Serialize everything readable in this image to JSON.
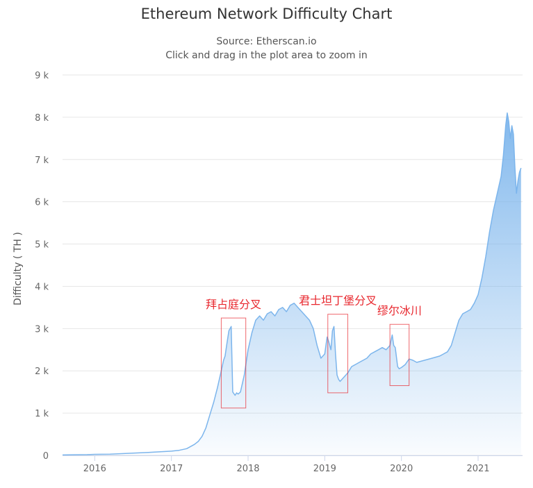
{
  "chart_data": {
    "type": "area",
    "title": "Ethereum Network Difficulty Chart",
    "subtitle": "Source: Etherscan.io",
    "subtitle2": "Click and drag in the plot area to zoom in",
    "xlabel": "",
    "ylabel": "Difficulty ( TH )",
    "x_ticks": [
      "2016",
      "2017",
      "2018",
      "2019",
      "2020",
      "2021"
    ],
    "y_ticks": [
      {
        "value": 0,
        "label": "0"
      },
      {
        "value": 1000,
        "label": "1 k"
      },
      {
        "value": 2000,
        "label": "2 k"
      },
      {
        "value": 3000,
        "label": "3 k"
      },
      {
        "value": 4000,
        "label": "4 k"
      },
      {
        "value": 5000,
        "label": "5 k"
      },
      {
        "value": 6000,
        "label": "6 k"
      },
      {
        "value": 7000,
        "label": "7 k"
      },
      {
        "value": 8000,
        "label": "8 k"
      },
      {
        "value": 9000,
        "label": "9 k"
      }
    ],
    "ylim": [
      0,
      9000
    ],
    "xlim": [
      2015.58,
      2021.58
    ],
    "grid": true,
    "colors": {
      "line": "#7cb5ec",
      "fill_top": "#7cb5ec",
      "fill_bottom": "#ffffff",
      "annotation": "#e8262d"
    },
    "series": [
      {
        "x": [
          2015.58,
          2015.7,
          2015.9,
          2016.0,
          2016.2,
          2016.4,
          2016.6,
          2016.7,
          2016.8,
          2016.9,
          2017.0,
          2017.1,
          2017.2,
          2017.3,
          2017.35,
          2017.4,
          2017.45,
          2017.5,
          2017.55,
          2017.6,
          2017.65,
          2017.68,
          2017.7,
          2017.72,
          2017.75,
          2017.78,
          2017.8,
          2017.83,
          2017.85,
          2017.87,
          2017.9,
          2017.95,
          2018.0,
          2018.05,
          2018.1,
          2018.15,
          2018.2,
          2018.25,
          2018.3,
          2018.35,
          2018.4,
          2018.45,
          2018.5,
          2018.55,
          2018.6,
          2018.65,
          2018.7,
          2018.75,
          2018.8,
          2018.85,
          2018.9,
          2018.95,
          2019.0,
          2019.03,
          2019.05,
          2019.08,
          2019.1,
          2019.12,
          2019.14,
          2019.16,
          2019.18,
          2019.2,
          2019.25,
          2019.3,
          2019.35,
          2019.4,
          2019.45,
          2019.5,
          2019.55,
          2019.6,
          2019.65,
          2019.7,
          2019.75,
          2019.8,
          2019.85,
          2019.88,
          2019.9,
          2019.92,
          2019.95,
          2019.97,
          2020.0,
          2020.05,
          2020.1,
          2020.15,
          2020.2,
          2020.3,
          2020.4,
          2020.5,
          2020.6,
          2020.65,
          2020.7,
          2020.75,
          2020.8,
          2020.85,
          2020.9,
          2020.95,
          2021.0,
          2021.05,
          2021.1,
          2021.15,
          2021.2,
          2021.25,
          2021.3,
          2021.33,
          2021.36,
          2021.38,
          2021.4,
          2021.42,
          2021.44,
          2021.46,
          2021.48,
          2021.5,
          2021.52,
          2021.54,
          2021.56
        ],
        "values": [
          10,
          15,
          18,
          25,
          30,
          45,
          60,
          70,
          80,
          90,
          100,
          120,
          160,
          260,
          330,
          450,
          650,
          950,
          1250,
          1600,
          2000,
          2250,
          2350,
          2600,
          2950,
          3050,
          1500,
          1420,
          1480,
          1450,
          1500,
          1900,
          2500,
          2900,
          3200,
          3300,
          3200,
          3350,
          3400,
          3300,
          3450,
          3500,
          3400,
          3550,
          3600,
          3500,
          3400,
          3300,
          3200,
          3000,
          2600,
          2300,
          2400,
          2800,
          2700,
          2500,
          2950,
          3050,
          2400,
          1900,
          1800,
          1750,
          1850,
          1950,
          2100,
          2150,
          2200,
          2250,
          2300,
          2400,
          2450,
          2500,
          2550,
          2500,
          2600,
          2850,
          2600,
          2550,
          2100,
          2050,
          2080,
          2150,
          2280,
          2250,
          2200,
          2250,
          2300,
          2350,
          2450,
          2600,
          2900,
          3200,
          3350,
          3400,
          3450,
          3600,
          3800,
          4200,
          4700,
          5300,
          5800,
          6200,
          6600,
          7100,
          7800,
          8100,
          7900,
          7500,
          7800,
          7600,
          6800,
          6200,
          6500,
          6700,
          6800
        ]
      }
    ],
    "annotations": [
      {
        "label": "拜占庭分叉",
        "x0": 2017.65,
        "x1": 2017.97,
        "y0": 1120,
        "y1": 3250
      },
      {
        "label": "君士坦丁堡分叉",
        "x0": 2019.04,
        "x1": 2019.3,
        "y0": 1480,
        "y1": 3340
      },
      {
        "label": "缪尔冰川",
        "x0": 2019.85,
        "x1": 2020.1,
        "y0": 1650,
        "y1": 3100
      }
    ]
  }
}
